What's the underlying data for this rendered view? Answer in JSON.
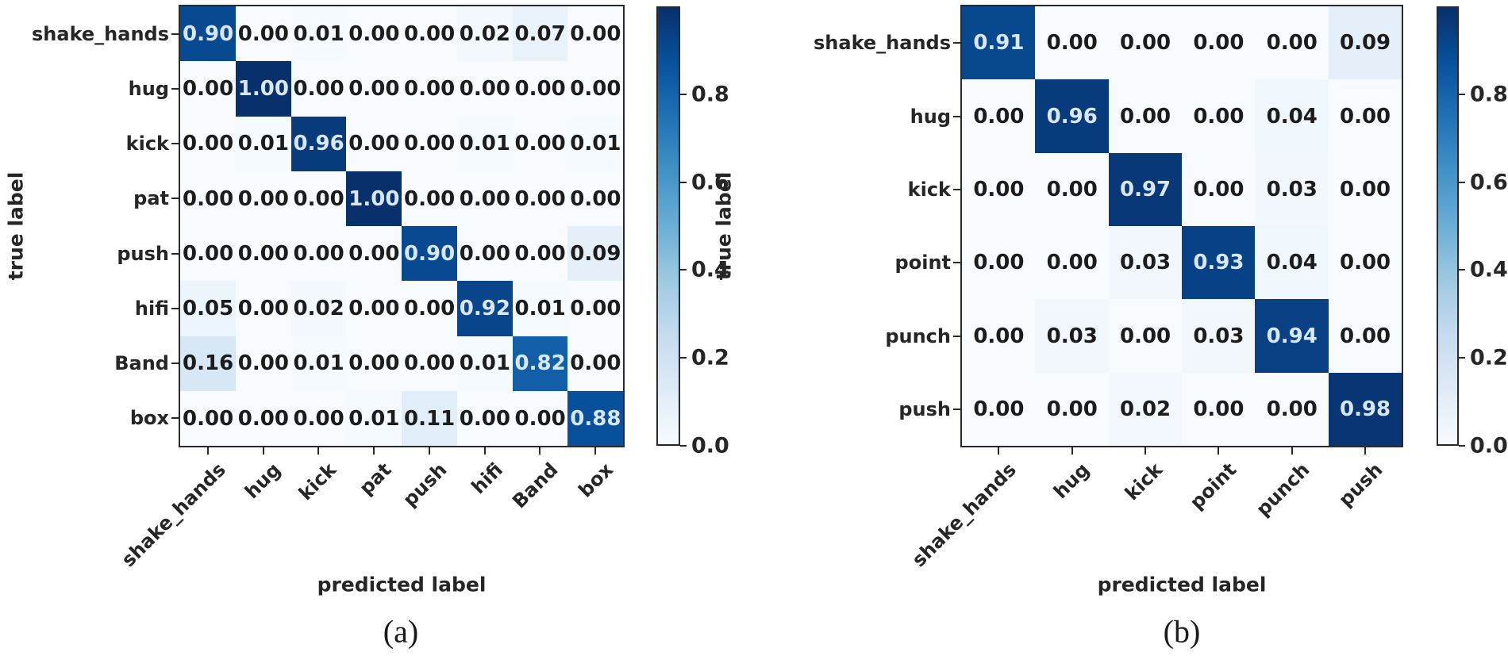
{
  "figure": {
    "background": "#ffffff"
  },
  "chart_data": [
    {
      "id": "a",
      "type": "heatmap",
      "caption": "(a)",
      "xlabel": "predicted label",
      "ylabel": "true label",
      "categories": [
        "shake_hands",
        "hug",
        "kick",
        "pat",
        "push",
        "hifi",
        "Band",
        "box"
      ],
      "matrix": [
        [
          0.9,
          0.0,
          0.01,
          0.0,
          0.0,
          0.02,
          0.07,
          0.0
        ],
        [
          0.0,
          1.0,
          0.0,
          0.0,
          0.0,
          0.0,
          0.0,
          0.0
        ],
        [
          0.0,
          0.01,
          0.96,
          0.0,
          0.0,
          0.01,
          0.0,
          0.01
        ],
        [
          0.0,
          0.0,
          0.0,
          1.0,
          0.0,
          0.0,
          0.0,
          0.0
        ],
        [
          0.0,
          0.0,
          0.0,
          0.0,
          0.9,
          0.0,
          0.0,
          0.09
        ],
        [
          0.05,
          0.0,
          0.02,
          0.0,
          0.0,
          0.92,
          0.01,
          0.0
        ],
        [
          0.16,
          0.0,
          0.01,
          0.0,
          0.0,
          0.01,
          0.82,
          0.0
        ],
        [
          0.0,
          0.0,
          0.0,
          0.01,
          0.11,
          0.0,
          0.0,
          0.88
        ]
      ],
      "value_decimals": 2,
      "colormap": "Blues",
      "vmin": 0,
      "vmax": 1,
      "colorbar_ticks": [
        0.8,
        0.6,
        0.4,
        0.2,
        0.0
      ],
      "legend_position": "right"
    },
    {
      "id": "b",
      "type": "heatmap",
      "caption": "(b)",
      "xlabel": "predicted label",
      "ylabel": "true label",
      "categories": [
        "shake_hands",
        "hug",
        "kick",
        "point",
        "punch",
        "push"
      ],
      "matrix": [
        [
          0.91,
          0.0,
          0.0,
          0.0,
          0.0,
          0.09
        ],
        [
          0.0,
          0.96,
          0.0,
          0.0,
          0.04,
          0.0
        ],
        [
          0.0,
          0.0,
          0.97,
          0.0,
          0.03,
          0.0
        ],
        [
          0.0,
          0.0,
          0.03,
          0.93,
          0.04,
          0.0
        ],
        [
          0.0,
          0.03,
          0.0,
          0.03,
          0.94,
          0.0
        ],
        [
          0.0,
          0.0,
          0.02,
          0.0,
          0.0,
          0.98
        ]
      ],
      "value_decimals": 2,
      "colormap": "Blues",
      "vmin": 0,
      "vmax": 1,
      "colorbar_ticks": [
        0.8,
        0.6,
        0.4,
        0.2,
        0.0
      ],
      "legend_position": "right"
    }
  ],
  "colors": {
    "blues_stops": [
      "#f7fbff",
      "#deebf7",
      "#c6dbef",
      "#9ecae1",
      "#6baed6",
      "#4292c6",
      "#2171b5",
      "#08519c",
      "#08306b"
    ],
    "diagonal_text": "#d8e6f5",
    "cell_text": "#1c1c1c",
    "tick_text": "#262626",
    "spine": "#2a2a2a"
  }
}
